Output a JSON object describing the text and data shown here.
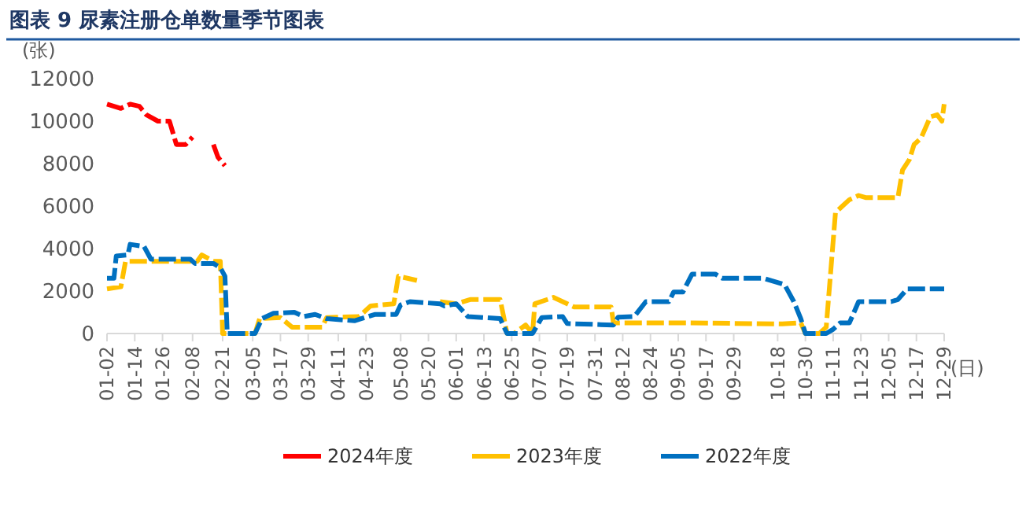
{
  "chart_data": {
    "type": "line",
    "title": "图表 9  尿素注册仓单数量季节图表",
    "ylabel": "(张)",
    "xlabel": "(日)",
    "legend": "bottom",
    "line_style": "dashed",
    "grid": false,
    "xlim": [
      "--01-02",
      "--12-29"
    ],
    "xticks": [
      {
        "value": "--01-02",
        "label": "01-02"
      },
      {
        "value": "--01-14",
        "label": "01-14"
      },
      {
        "value": "--01-26",
        "label": "01-26"
      },
      {
        "value": "--02-08",
        "label": "02-08"
      },
      {
        "value": "--02-21",
        "label": "02-21"
      },
      {
        "value": "--03-05",
        "label": "03-05"
      },
      {
        "value": "--03-17",
        "label": "03-17"
      },
      {
        "value": "--03-29",
        "label": "03-29"
      },
      {
        "value": "--04-11",
        "label": "04-11"
      },
      {
        "value": "--04-23",
        "label": "04-23"
      },
      {
        "value": "--05-08",
        "label": "05-08"
      },
      {
        "value": "--05-20",
        "label": "05-20"
      },
      {
        "value": "--06-01",
        "label": "06-01"
      },
      {
        "value": "--06-13",
        "label": "06-13"
      },
      {
        "value": "--06-25",
        "label": "06-25"
      },
      {
        "value": "--07-07",
        "label": "07-07"
      },
      {
        "value": "--07-19",
        "label": "07-19"
      },
      {
        "value": "--07-31",
        "label": "07-31"
      },
      {
        "value": "--08-12",
        "label": "08-12"
      },
      {
        "value": "--08-24",
        "label": "08-24"
      },
      {
        "value": "--09-05",
        "label": "09-05"
      },
      {
        "value": "--09-17",
        "label": "09-17"
      },
      {
        "value": "--09-29",
        "label": "09-29"
      },
      {
        "value": "--10-18",
        "label": "10-18"
      },
      {
        "value": "--10-30",
        "label": "10-30"
      },
      {
        "value": "--11-11",
        "label": "11-11"
      },
      {
        "value": "--11-23",
        "label": "11-23"
      },
      {
        "value": "--12-05",
        "label": "12-05"
      },
      {
        "value": "--12-17",
        "label": "12-17"
      },
      {
        "value": "--12-29",
        "label": "12-29"
      }
    ],
    "ylim": [
      0,
      12000
    ],
    "yticks": [
      0,
      2000,
      4000,
      6000,
      8000,
      10000,
      12000
    ],
    "series": [
      {
        "name": "2024年度",
        "color": "#ff0000",
        "x": [
          "--01-02",
          "--01-08",
          "--01-12",
          "--01-16",
          "--01-19",
          "--01-24",
          "--01-29",
          "--02-01",
          "--02-05",
          "--02-08",
          "--02-12",
          "--02-17",
          "--02-19",
          "--02-22"
        ],
        "values": [
          10800,
          10600,
          10800,
          10700,
          10300,
          10000,
          10000,
          8900,
          8900,
          9250,
          null,
          8900,
          8300,
          7900
        ]
      },
      {
        "name": "2023年度",
        "color": "#ffc000",
        "x": [
          "--01-02",
          "--01-08",
          "--01-10",
          "--02-10",
          "--02-12",
          "--02-17",
          "--02-20",
          "--02-21",
          "--03-06",
          "--03-08",
          "--03-17",
          "--03-22",
          "--04-04",
          "--04-06",
          "--04-20",
          "--04-25",
          "--05-05",
          "--05-07",
          "--05-15",
          "--05-20",
          "--05-25",
          "--06-01",
          "--06-07",
          "--06-20",
          "--06-23",
          "--06-26",
          "--07-01",
          "--07-04",
          "--07-05",
          "--07-13",
          "--07-22",
          "--08-07",
          "--08-08",
          "--09-10",
          "--10-20",
          "--10-28",
          "--10-30",
          "--11-05",
          "--11-08",
          "--11-12",
          "--11-15",
          "--11-18",
          "--11-22",
          "--11-25",
          "--12-09",
          "--12-11",
          "--12-14",
          "--12-16",
          "--12-19",
          "--12-23",
          "--12-26",
          "--12-28",
          "--12-29"
        ],
        "values": [
          2100,
          2200,
          3400,
          3400,
          3700,
          3400,
          3400,
          0,
          0,
          700,
          750,
          300,
          300,
          750,
          800,
          1300,
          1400,
          2700,
          2500,
          null,
          1500,
          1400,
          1600,
          1600,
          0,
          0,
          400,
          0,
          1400,
          1700,
          1250,
          1250,
          500,
          500,
          450,
          500,
          0,
          0,
          300,
          5700,
          6000,
          6300,
          6500,
          6400,
          6400,
          7700,
          8200,
          8900,
          9200,
          10200,
          10300,
          10000,
          10800
        ]
      },
      {
        "name": "2022年度",
        "color": "#0070c0",
        "x": [
          "--01-02",
          "--01-05",
          "--01-06",
          "--01-11",
          "--01-12",
          "--01-18",
          "--01-21",
          "--02-07",
          "--02-09",
          "--02-17",
          "--02-20",
          "--02-22",
          "--02-23",
          "--03-06",
          "--03-09",
          "--03-14",
          "--03-23",
          "--03-27",
          "--04-01",
          "--04-06",
          "--04-18",
          "--04-27",
          "--05-06",
          "--05-08",
          "--05-12",
          "--05-25",
          "--05-27",
          "--06-01",
          "--06-06",
          "--06-20",
          "--06-23",
          "--07-04",
          "--07-08",
          "--07-17",
          "--07-19",
          "--08-08",
          "--08-10",
          "--08-17",
          "--08-22",
          "--09-01",
          "--09-03",
          "--09-07",
          "--09-11",
          "--09-21",
          "--09-24",
          "--10-12",
          "--10-21",
          "--10-25",
          "--10-28",
          "--10-30",
          "--11-08",
          "--11-11",
          "--11-14",
          "--11-18",
          "--11-22",
          "--12-06",
          "--12-09",
          "--12-13",
          "--12-29"
        ],
        "values": [
          2600,
          2600,
          3650,
          3700,
          4200,
          4100,
          3500,
          3500,
          3300,
          3300,
          3100,
          2700,
          0,
          0,
          700,
          950,
          1000,
          800,
          900,
          700,
          600,
          900,
          900,
          1350,
          1500,
          1400,
          1300,
          1400,
          800,
          700,
          0,
          0,
          750,
          800,
          470,
          400,
          770,
          800,
          1500,
          1500,
          1950,
          1950,
          2800,
          2800,
          2600,
          2600,
          2300,
          1500,
          700,
          0,
          0,
          200,
          500,
          500,
          1500,
          1500,
          1600,
          2100,
          2100
        ]
      }
    ]
  }
}
